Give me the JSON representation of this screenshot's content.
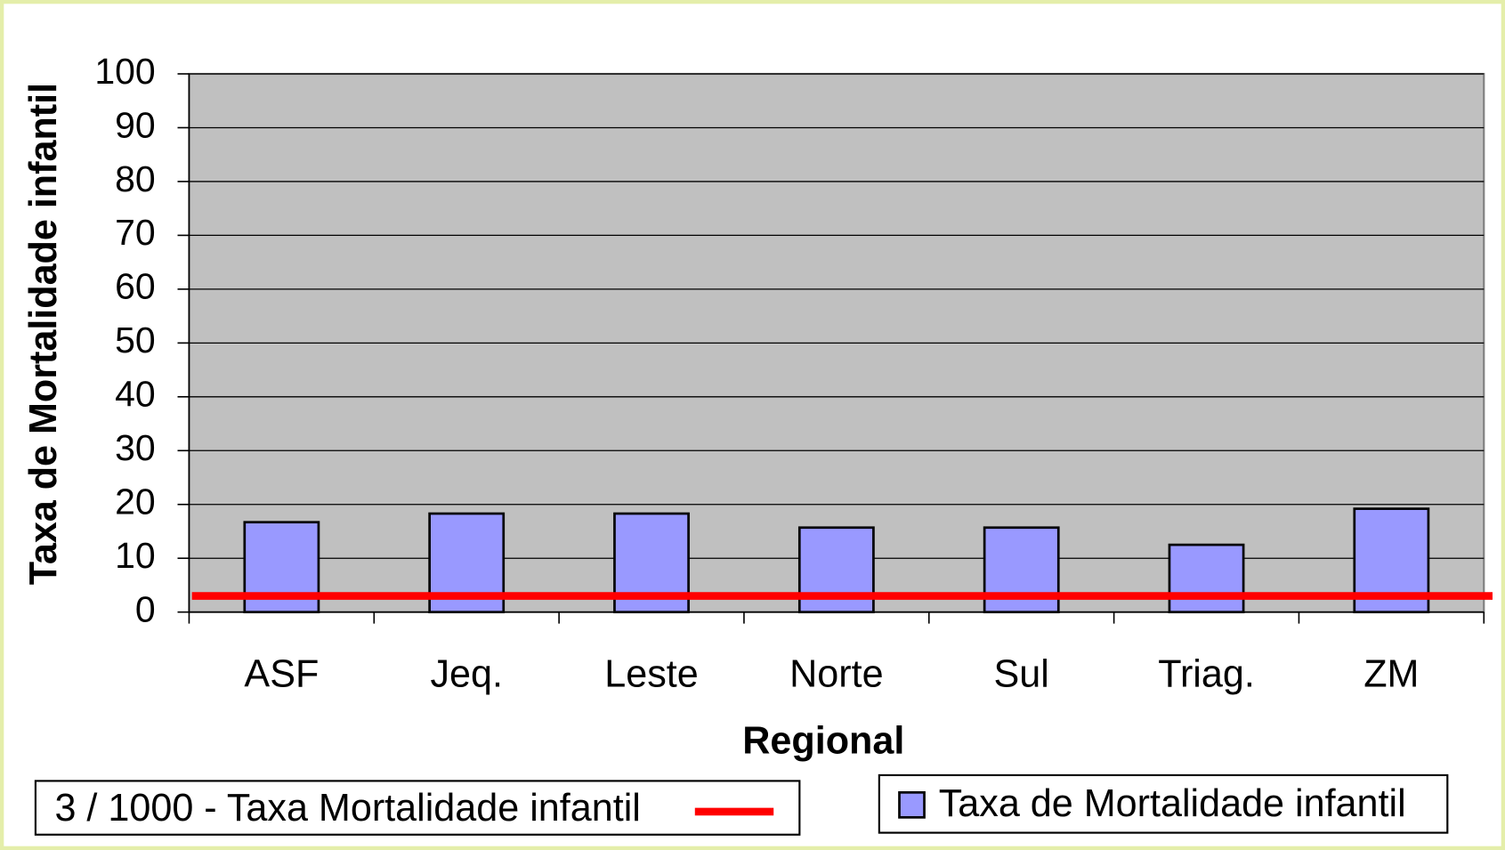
{
  "chart_data": {
    "type": "bar",
    "x_label": "Regional",
    "y_label": "Taxa de Mortalidade infantil",
    "categories": [
      "ASF",
      "Jeq.",
      "Leste",
      "Norte",
      "Sul",
      "Triag.",
      "ZM"
    ],
    "series": [
      {
        "name": "Taxa de Mortalidade infantil",
        "color": "#9999ff",
        "values": [
          16.7,
          18.3,
          18.3,
          15.7,
          15.7,
          12.5,
          19.2
        ]
      }
    ],
    "reference_line": {
      "name": "3 / 1000 - Taxa Mortalidade infantil",
      "value": 3,
      "color": "#ff0000"
    },
    "ylim": [
      0,
      100
    ],
    "yticks": [
      0,
      10,
      20,
      30,
      40,
      50,
      60,
      70,
      80,
      90,
      100
    ],
    "grid": true,
    "plot_background": "#c0c0c0"
  }
}
